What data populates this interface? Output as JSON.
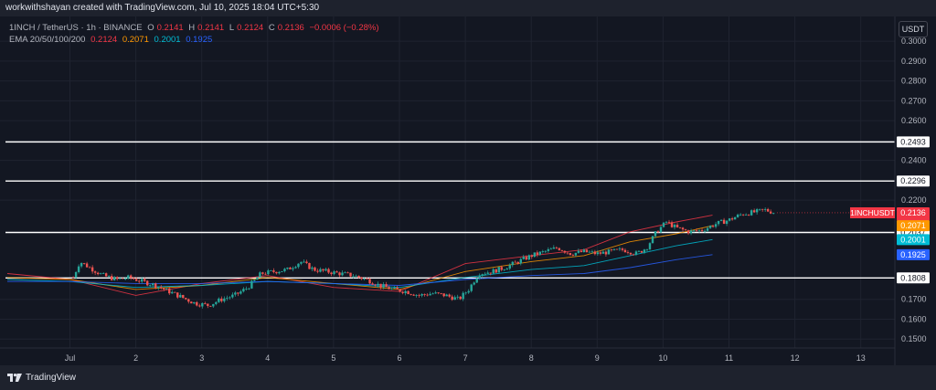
{
  "credit": "workwithshayan created with TradingView.com, Jul 10, 2025 18:04 UTC+5:30",
  "legend": {
    "symbol": "1INCH / TetherUS · 1h · BINANCE",
    "o_label": "O",
    "o": "0.2141",
    "h_label": "H",
    "h": "0.2141",
    "l_label": "L",
    "l": "0.2124",
    "c_label": "C",
    "c": "0.2136",
    "change": "−0.0006 (−0.28%)",
    "ema_label": "EMA 20/50/100/200",
    "ema20": "0.2124",
    "ema50": "0.2071",
    "ema100": "0.2001",
    "ema200": "0.1925"
  },
  "currency_button": "USDT",
  "brand": "TradingView",
  "colors": {
    "background": "#131722",
    "up": "#26a69a",
    "down": "#ef5350",
    "ema20": "#f23645",
    "ema50": "#ff9800",
    "ema100": "#00bcd4",
    "ema200": "#2962ff",
    "hline": "#ffffff"
  },
  "chart_data": {
    "type": "candlestick",
    "symbol": "1INCHUSDT",
    "x_ticks": [
      {
        "label": "Jul",
        "day": 1
      },
      {
        "label": "2",
        "day": 2
      },
      {
        "label": "3",
        "day": 3
      },
      {
        "label": "4",
        "day": 4
      },
      {
        "label": "5",
        "day": 5
      },
      {
        "label": "6",
        "day": 6
      },
      {
        "label": "7",
        "day": 7
      },
      {
        "label": "8",
        "day": 8
      },
      {
        "label": "9",
        "day": 9
      },
      {
        "label": "10",
        "day": 10
      },
      {
        "label": "11",
        "day": 11
      },
      {
        "label": "12",
        "day": 12
      },
      {
        "label": "13",
        "day": 13
      }
    ],
    "y_ticks": [
      "0.3000",
      "0.2900",
      "0.2800",
      "0.2700",
      "0.2600",
      "0.2400",
      "0.2200",
      "0.1700",
      "0.1600",
      "0.1500"
    ],
    "ylim": [
      0.1455,
      0.3125
    ],
    "grid": true,
    "horizontal_lines": [
      "0.2493",
      "0.2296",
      "0.2037",
      "0.1808"
    ],
    "price_label": {
      "symbol": "1INCHUSDT",
      "value": "0.2136"
    },
    "ema_labels": [
      {
        "name": "EMA 20",
        "value": "0.2124"
      },
      {
        "name": "EMA 50",
        "value": "0.2071"
      },
      {
        "name": "EMA 100",
        "value": "0.2001"
      },
      {
        "name": "EMA 200",
        "value": "0.1925"
      }
    ],
    "price_path": [
      [
        0.05,
        0.181
      ],
      [
        0.15,
        0.189
      ],
      [
        0.3,
        0.186
      ],
      [
        0.5,
        0.182
      ],
      [
        0.7,
        0.18
      ],
      [
        0.9,
        0.181
      ],
      [
        1.1,
        0.179
      ],
      [
        1.3,
        0.177
      ],
      [
        1.5,
        0.174
      ],
      [
        1.7,
        0.171
      ],
      [
        1.9,
        0.168
      ],
      [
        2.1,
        0.167
      ],
      [
        2.3,
        0.17
      ],
      [
        2.5,
        0.172
      ],
      [
        2.7,
        0.176
      ],
      [
        2.9,
        0.183
      ],
      [
        3.1,
        0.184
      ],
      [
        3.3,
        0.185
      ],
      [
        3.5,
        0.189
      ],
      [
        3.7,
        0.185
      ],
      [
        3.9,
        0.184
      ],
      [
        4.1,
        0.183
      ],
      [
        4.3,
        0.182
      ],
      [
        4.5,
        0.18
      ],
      [
        4.7,
        0.177
      ],
      [
        4.9,
        0.175
      ],
      [
        5.1,
        0.174
      ],
      [
        5.3,
        0.172
      ],
      [
        5.5,
        0.173
      ],
      [
        5.7,
        0.172
      ],
      [
        5.9,
        0.17
      ],
      [
        6.05,
        0.175
      ],
      [
        6.2,
        0.183
      ],
      [
        6.4,
        0.184
      ],
      [
        6.6,
        0.186
      ],
      [
        6.8,
        0.189
      ],
      [
        7.0,
        0.192
      ],
      [
        7.2,
        0.194
      ],
      [
        7.4,
        0.196
      ],
      [
        7.6,
        0.193
      ],
      [
        7.8,
        0.194
      ],
      [
        8.0,
        0.193
      ],
      [
        8.2,
        0.194
      ],
      [
        8.4,
        0.195
      ],
      [
        8.6,
        0.193
      ],
      [
        8.75,
        0.196
      ],
      [
        8.9,
        0.204
      ],
      [
        9.05,
        0.209
      ],
      [
        9.2,
        0.206
      ],
      [
        9.4,
        0.204
      ],
      [
        9.6,
        0.205
      ],
      [
        9.8,
        0.208
      ],
      [
        10.0,
        0.21
      ],
      [
        10.2,
        0.213
      ],
      [
        10.4,
        0.214
      ],
      [
        10.55,
        0.215
      ],
      [
        10.7,
        0.2136
      ]
    ],
    "ema_paths": [
      {
        "name": "EMA 20",
        "points": [
          [
            0.05,
            0.183
          ],
          [
            1.0,
            0.18
          ],
          [
            2.0,
            0.172
          ],
          [
            3.0,
            0.178
          ],
          [
            4.0,
            0.182
          ],
          [
            5.0,
            0.176
          ],
          [
            6.0,
            0.174
          ],
          [
            7.0,
            0.188
          ],
          [
            8.0,
            0.192
          ],
          [
            8.8,
            0.195
          ],
          [
            9.5,
            0.204
          ],
          [
            10.2,
            0.209
          ],
          [
            10.75,
            0.2124
          ]
        ]
      },
      {
        "name": "EMA 50",
        "points": [
          [
            0.05,
            0.181
          ],
          [
            1.0,
            0.18
          ],
          [
            2.0,
            0.175
          ],
          [
            3.0,
            0.177
          ],
          [
            4.0,
            0.181
          ],
          [
            5.0,
            0.178
          ],
          [
            6.0,
            0.175
          ],
          [
            7.0,
            0.184
          ],
          [
            8.0,
            0.189
          ],
          [
            8.8,
            0.192
          ],
          [
            9.5,
            0.199
          ],
          [
            10.2,
            0.203
          ],
          [
            10.75,
            0.2071
          ]
        ]
      },
      {
        "name": "EMA 100",
        "points": [
          [
            0.05,
            0.18
          ],
          [
            1.0,
            0.179
          ],
          [
            2.0,
            0.176
          ],
          [
            3.0,
            0.177
          ],
          [
            4.0,
            0.179
          ],
          [
            5.0,
            0.178
          ],
          [
            6.0,
            0.176
          ],
          [
            7.0,
            0.181
          ],
          [
            8.0,
            0.185
          ],
          [
            8.8,
            0.187
          ],
          [
            9.5,
            0.192
          ],
          [
            10.2,
            0.197
          ],
          [
            10.75,
            0.2001
          ]
        ]
      },
      {
        "name": "EMA 200",
        "points": [
          [
            0.05,
            0.179
          ],
          [
            1.0,
            0.179
          ],
          [
            2.0,
            0.178
          ],
          [
            3.0,
            0.178
          ],
          [
            4.0,
            0.179
          ],
          [
            5.0,
            0.178
          ],
          [
            6.0,
            0.177
          ],
          [
            7.0,
            0.18
          ],
          [
            8.0,
            0.182
          ],
          [
            8.8,
            0.183
          ],
          [
            9.5,
            0.186
          ],
          [
            10.2,
            0.19
          ],
          [
            10.75,
            0.1925
          ]
        ]
      }
    ]
  }
}
